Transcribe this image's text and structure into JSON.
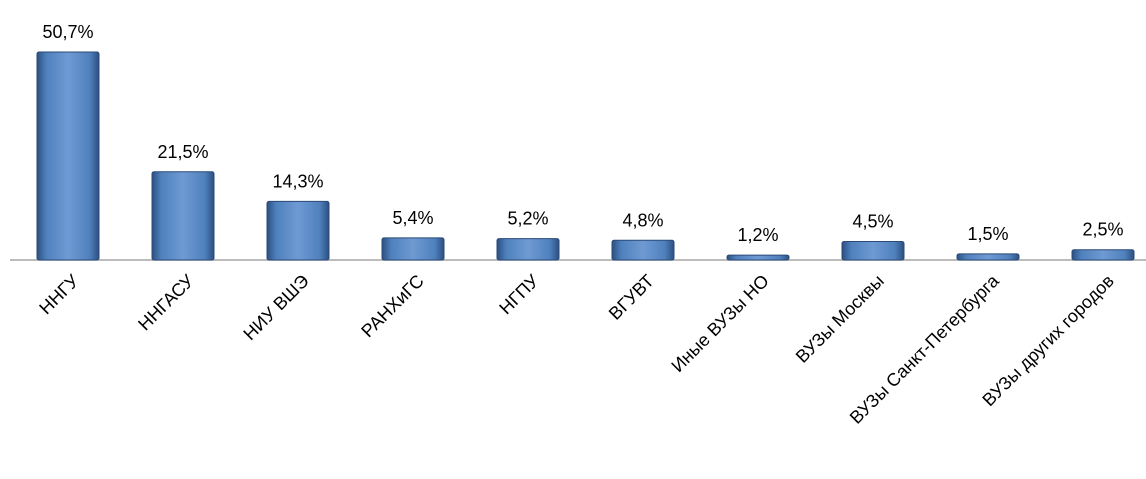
{
  "chart_data": {
    "type": "bar",
    "categories": [
      "ННГУ",
      "ННГАСУ",
      "НИУ ВШЭ",
      "РАНХиГС",
      "НГПУ",
      "ВГУВТ",
      "Иные ВУЗы НО",
      "ВУЗы Москвы",
      "ВУЗы Санкт-Петербурга",
      "ВУЗы других городов"
    ],
    "values": [
      50.7,
      21.5,
      14.3,
      5.4,
      5.2,
      4.8,
      1.2,
      4.5,
      1.5,
      2.5
    ],
    "value_labels": [
      "50,7%",
      "21,5%",
      "14,3%",
      "5,4%",
      "5,2%",
      "4,8%",
      "1,2%",
      "4,5%",
      "1,5%",
      "2,5%"
    ],
    "color": "#4f81bd"
  }
}
